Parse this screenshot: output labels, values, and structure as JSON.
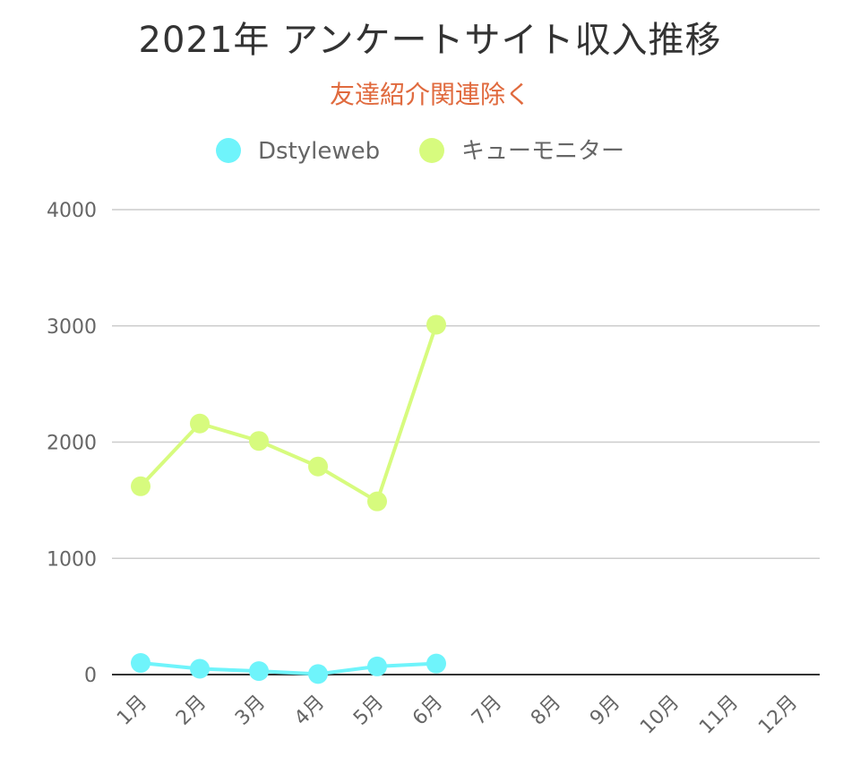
{
  "chart_data": {
    "type": "line",
    "title": "2021年 アンケートサイト収入推移",
    "subtitle": "友達紹介関連除く",
    "categories": [
      "1月",
      "2月",
      "3月",
      "4月",
      "5月",
      "6月",
      "7月",
      "8月",
      "9月",
      "10月",
      "11月",
      "12月"
    ],
    "series": [
      {
        "name": "Dstyleweb",
        "color": "#6ff4fb",
        "values": [
          100,
          50,
          30,
          5,
          70,
          95,
          null,
          null,
          null,
          null,
          null,
          null
        ]
      },
      {
        "name": "キューモニター",
        "color": "#d7fb7e",
        "values": [
          1620,
          2160,
          2010,
          1790,
          1490,
          3010,
          null,
          null,
          null,
          null,
          null,
          null
        ]
      }
    ],
    "ylim": [
      0,
      4000
    ],
    "yticks": [
      0,
      1000,
      2000,
      3000,
      4000
    ],
    "grid": true,
    "legend_position": "top-center"
  }
}
